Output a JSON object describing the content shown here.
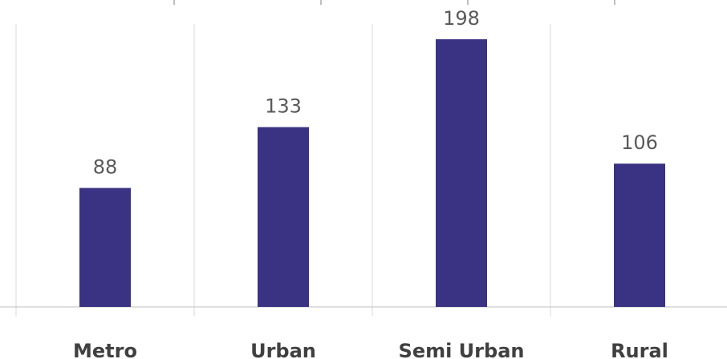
{
  "chart_data": {
    "type": "bar",
    "categories": [
      "Metro",
      "Urban",
      "Semi Urban",
      "Rural"
    ],
    "values": [
      88,
      133,
      198,
      106
    ],
    "title": "",
    "xlabel": "",
    "ylabel": "",
    "ylim": [
      0,
      198
    ],
    "grid": "vertical",
    "legend": "none",
    "bar_color": "#3a3283",
    "data_labels": true
  }
}
